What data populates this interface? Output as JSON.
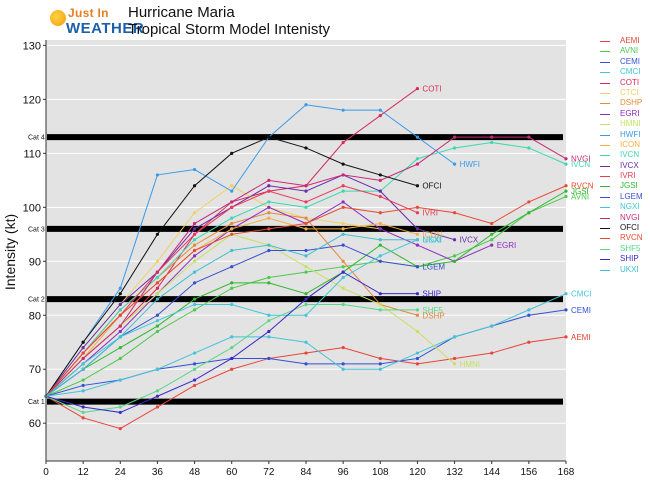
{
  "header": {
    "logo_line1": "Just In",
    "logo_line2": "WEATHER",
    "title_line1": "Hurricane Maria",
    "title_line2": "Tropical Storm Model Intenisty"
  },
  "colors": {
    "AEMI": "#e8443a",
    "AVNI": "#4cc94c",
    "CEMI": "#3350d8",
    "CMCI": "#45c3d8",
    "COTI": "#d62a5a",
    "CTCI": "#f0d060",
    "DSHP": "#e8883a",
    "EGRI": "#8e2cc0",
    "HMNI": "#c8e060",
    "HWFI": "#3a9ae8",
    "ICON": "#f0b040",
    "IVCN": "#3ad8b0",
    "IVCX": "#6a2caa",
    "IVRI": "#e83a5a",
    "JGSI": "#30b830",
    "LGEM": "#3850d0",
    "NGXI": "#40c8d8",
    "NVGI": "#c82a78",
    "OFCI": "#111111",
    "RVCN": "#e84a30",
    "SHF5": "#58d888",
    "SHIP": "#3a2ac8",
    "UKXI": "#40c0d0",
    "threshold": "#000000",
    "plot_bg": "#e3e3e3"
  },
  "chart_data": {
    "type": "line",
    "title": "Hurricane Maria Tropical Storm Model Intenisty",
    "xlabel": "",
    "ylabel": "Intensity (kt)",
    "xlim": [
      0,
      168
    ],
    "ylim": [
      53,
      131
    ],
    "x_ticks": [
      "0",
      "12",
      "24",
      "36",
      "48",
      "60",
      "72",
      "84",
      "96",
      "108",
      "120",
      "132",
      "144",
      "156",
      "168"
    ],
    "y_ticks": [
      "60",
      "70",
      "80",
      "90",
      "100",
      "110",
      "120",
      "130"
    ],
    "grid": true,
    "legend_position": "right",
    "thresholds": [
      {
        "label": "Cat 1",
        "value": 64
      },
      {
        "label": "Cat 2",
        "value": 83
      },
      {
        "label": "Cat 3",
        "value": 96
      },
      {
        "label": "Cat 4",
        "value": 113
      }
    ],
    "x": [
      0,
      12,
      24,
      36,
      48,
      60,
      72,
      84,
      96,
      108,
      120,
      132,
      144,
      156,
      168
    ],
    "series": [
      {
        "name": "AEMI",
        "values": [
          65,
          61,
          59,
          63,
          67,
          70,
          72,
          73,
          74,
          72,
          71,
          72,
          73,
          75,
          76
        ],
        "end_label": "AEMI"
      },
      {
        "name": "AVNI",
        "values": [
          65,
          68,
          72,
          77,
          81,
          85,
          87,
          88,
          89,
          90,
          89,
          91,
          94,
          99,
          102
        ],
        "end_label": "AVNI"
      },
      {
        "name": "CEMI",
        "values": [
          65,
          67,
          68,
          70,
          71,
          72,
          72,
          71,
          71,
          71,
          72,
          76,
          78,
          80,
          81
        ],
        "end_label": "CEMI"
      },
      {
        "name": "CMCI",
        "values": [
          65,
          66,
          68,
          70,
          73,
          76,
          76,
          75,
          70,
          70,
          73,
          76,
          78,
          81,
          84
        ],
        "end_label": "CMCI"
      },
      {
        "name": "COTI",
        "values": [
          65,
          72,
          78,
          85,
          95,
          101,
          103,
          104,
          112,
          117,
          122,
          null,
          null,
          null,
          null
        ],
        "end_label": "COTI"
      },
      {
        "name": "CTCI",
        "values": [
          65,
          74,
          82,
          90,
          99,
          104,
          100,
          98,
          97,
          96,
          null,
          null,
          null,
          null,
          null
        ],
        "end_label": null
      },
      {
        "name": "DSHP",
        "values": [
          65,
          73,
          81,
          87,
          93,
          97,
          99,
          98,
          90,
          82,
          80,
          null,
          null,
          null,
          null
        ],
        "end_label": "DSHP"
      },
      {
        "name": "EGRI",
        "values": [
          65,
          71,
          77,
          84,
          91,
          96,
          100,
          97,
          101,
          96,
          93,
          90,
          93,
          null,
          null
        ],
        "end_label": "EGRI"
      },
      {
        "name": "HMNI",
        "values": [
          65,
          72,
          78,
          84,
          90,
          95,
          93,
          89,
          85,
          82,
          77,
          71,
          null,
          null,
          null
        ],
        "end_label": "HMNI"
      },
      {
        "name": "HWFI",
        "values": [
          65,
          75,
          85,
          106,
          107,
          103,
          113,
          119,
          118,
          118,
          113,
          108,
          null,
          null,
          null
        ],
        "end_label": "HWFI"
      },
      {
        "name": "ICON",
        "values": [
          65,
          72,
          80,
          86,
          92,
          96,
          98,
          96,
          96,
          97,
          95,
          null,
          null,
          null,
          null
        ],
        "end_label": "ICON"
      },
      {
        "name": "IVCN",
        "values": [
          65,
          73,
          81,
          87,
          94,
          98,
          101,
          100,
          103,
          103,
          109,
          111,
          112,
          111,
          108
        ],
        "end_label": "IVCN"
      },
      {
        "name": "IVCX",
        "values": [
          65,
          74,
          82,
          88,
          96,
          100,
          104,
          103,
          106,
          103,
          96,
          94,
          null,
          null,
          null
        ],
        "end_label": "IVCX"
      },
      {
        "name": "IVRI",
        "values": [
          65,
          73,
          80,
          88,
          95,
          100,
          103,
          101,
          104,
          102,
          99,
          null,
          null,
          null,
          null
        ],
        "end_label": "IVRI"
      },
      {
        "name": "JGSI",
        "values": [
          65,
          70,
          74,
          78,
          83,
          86,
          86,
          84,
          88,
          93,
          89,
          90,
          95,
          99,
          103
        ],
        "end_label": "JGSI"
      },
      {
        "name": "LGEM",
        "values": [
          65,
          70,
          76,
          80,
          86,
          89,
          92,
          92,
          93,
          90,
          89,
          null,
          null,
          null,
          null
        ],
        "end_label": "LGEM"
      },
      {
        "name": "NGXI",
        "values": [
          65,
          71,
          76,
          79,
          82,
          82,
          80,
          80,
          87,
          91,
          94,
          null,
          null,
          null,
          null
        ],
        "end_label": "NGXI"
      },
      {
        "name": "NVGI",
        "values": [
          65,
          72,
          78,
          88,
          97,
          101,
          105,
          104,
          106,
          105,
          108,
          113,
          113,
          113,
          109
        ],
        "end_label": "NVGI"
      },
      {
        "name": "OFCI",
        "values": [
          65,
          75,
          84,
          95,
          104,
          110,
          113,
          111,
          108,
          106,
          104,
          null,
          null,
          null,
          null
        ],
        "end_label": "OFCI"
      },
      {
        "name": "RVCN",
        "values": [
          65,
          73,
          80,
          86,
          92,
          95,
          96,
          97,
          100,
          99,
          100,
          99,
          97,
          101,
          104
        ],
        "end_label": "RVCN"
      },
      {
        "name": "SHF5",
        "values": [
          65,
          62,
          63,
          66,
          70,
          74,
          79,
          82,
          82,
          81,
          81,
          null,
          null,
          null,
          null
        ],
        "end_label": "SHF5"
      },
      {
        "name": "SHIP",
        "values": [
          65,
          63,
          62,
          65,
          68,
          72,
          77,
          83,
          88,
          84,
          84,
          null,
          null,
          null,
          null
        ],
        "end_label": "SHIP"
      },
      {
        "name": "UKXI",
        "values": [
          65,
          70,
          76,
          83,
          88,
          92,
          93,
          91,
          95,
          94,
          94,
          null,
          null,
          null,
          null
        ],
        "end_label": "UKXI"
      }
    ]
  }
}
